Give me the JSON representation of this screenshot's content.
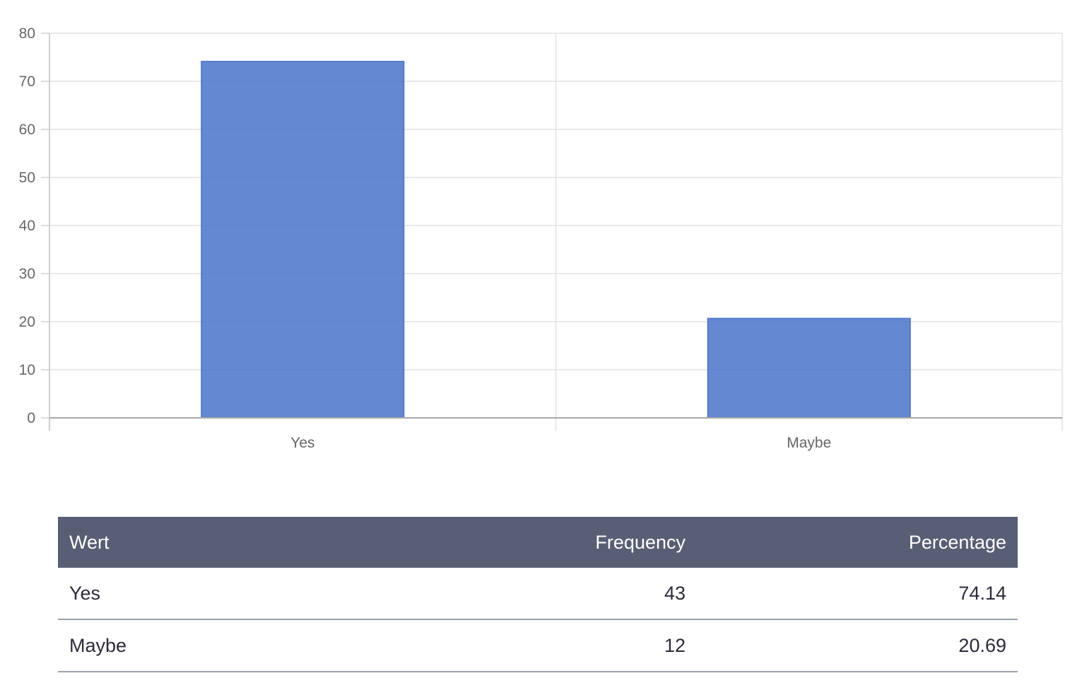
{
  "chart_data": {
    "type": "bar",
    "categories": [
      "Yes",
      "Maybe"
    ],
    "values": [
      74.14,
      20.69
    ],
    "ylim": [
      0,
      80
    ],
    "yticks": [
      0,
      10,
      20,
      30,
      40,
      50,
      60,
      70,
      80
    ],
    "grid": true,
    "bar_color": "#4a74c9"
  },
  "table": {
    "headers": [
      "Wert",
      "Frequency",
      "Percentage"
    ],
    "rows": [
      [
        "Yes",
        "43",
        "74.14"
      ],
      [
        "Maybe",
        "12",
        "20.69"
      ]
    ]
  }
}
